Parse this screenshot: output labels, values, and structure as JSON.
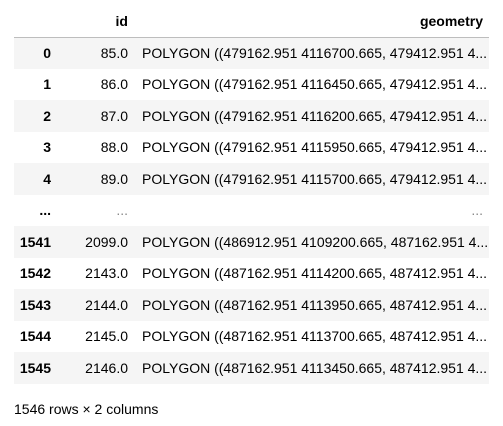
{
  "table": {
    "columns": [
      "",
      "id",
      "geometry"
    ],
    "rows": [
      {
        "index": "0",
        "id": "85.0",
        "geometry": "POLYGON ((479162.951 4116700.665, 479412.951 4..."
      },
      {
        "index": "1",
        "id": "86.0",
        "geometry": "POLYGON ((479162.951 4116450.665, 479412.951 4..."
      },
      {
        "index": "2",
        "id": "87.0",
        "geometry": "POLYGON ((479162.951 4116200.665, 479412.951 4..."
      },
      {
        "index": "3",
        "id": "88.0",
        "geometry": "POLYGON ((479162.951 4115950.665, 479412.951 4..."
      },
      {
        "index": "4",
        "id": "89.0",
        "geometry": "POLYGON ((479162.951 4115700.665, 479412.951 4..."
      },
      {
        "index": "...",
        "id": "...",
        "geometry": "..."
      },
      {
        "index": "1541",
        "id": "2099.0",
        "geometry": "POLYGON ((486912.951 4109200.665, 487162.951 4..."
      },
      {
        "index": "1542",
        "id": "2143.0",
        "geometry": "POLYGON ((487162.951 4114200.665, 487412.951 4..."
      },
      {
        "index": "1543",
        "id": "2144.0",
        "geometry": "POLYGON ((487162.951 4113950.665, 487412.951 4..."
      },
      {
        "index": "1544",
        "id": "2145.0",
        "geometry": "POLYGON ((487162.951 4113700.665, 487412.951 4..."
      },
      {
        "index": "1545",
        "id": "2146.0",
        "geometry": "POLYGON ((487162.951 4113450.665, 487412.951 4..."
      }
    ]
  },
  "shape_note": "1546 rows × 2 columns",
  "colors": {
    "striped_row": "#f5f5f5",
    "header_border": "#bdbdbd",
    "ellipsis_gray": "#888888"
  }
}
